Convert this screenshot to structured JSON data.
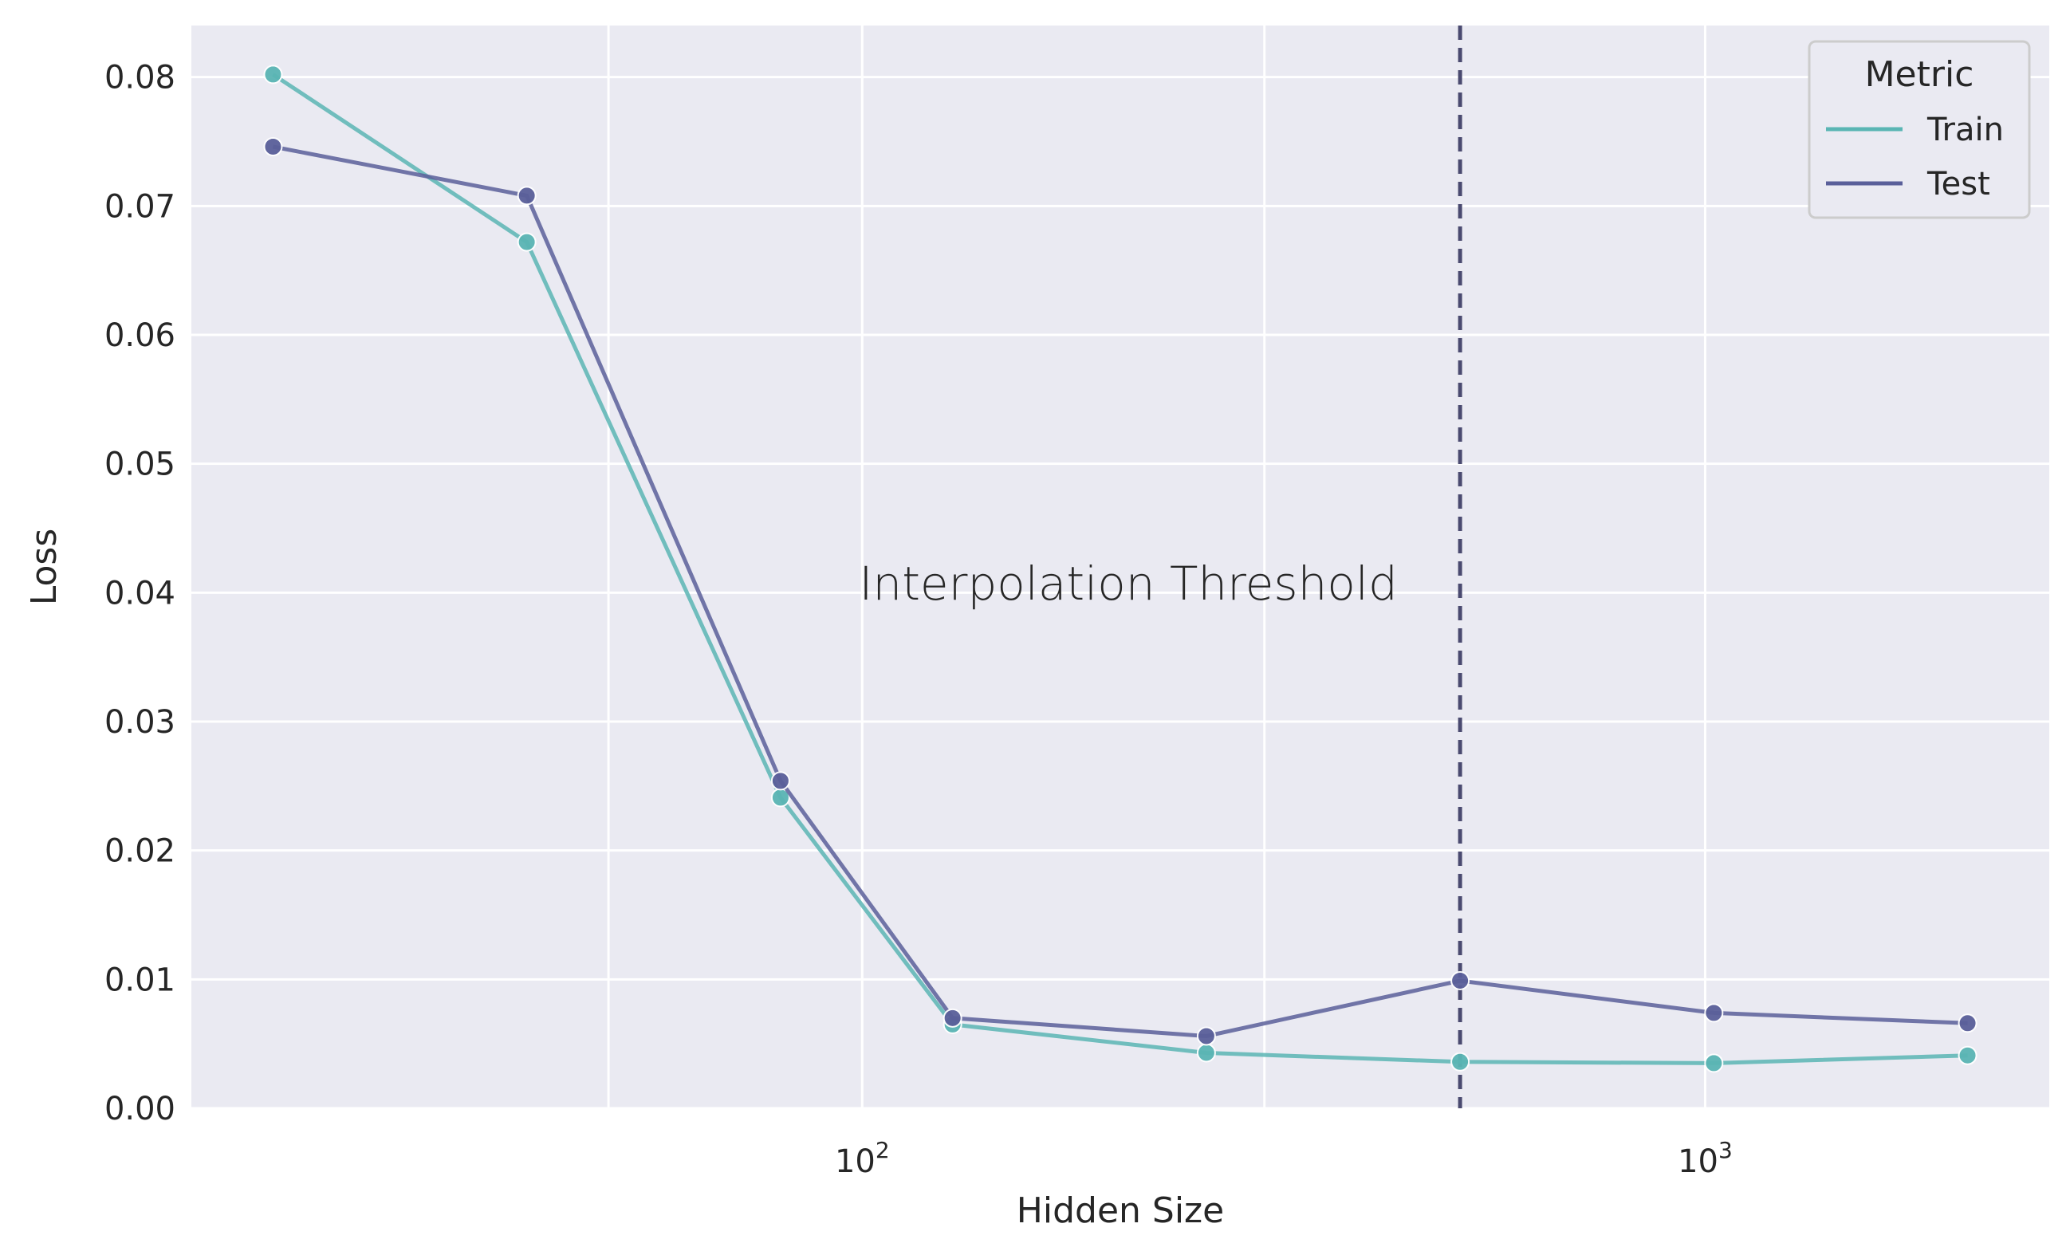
{
  "chart_data": {
    "type": "line",
    "xlabel": "Hidden Size",
    "ylabel": "Loss",
    "xscale": "log",
    "xlim": [
      16,
      2560
    ],
    "ylim": [
      0,
      0.084
    ],
    "x_ticks": [
      {
        "value": 100,
        "base": "10",
        "exp": "2"
      },
      {
        "value": 1000,
        "base": "10",
        "exp": "3"
      }
    ],
    "x_minor_grid": [
      50,
      300
    ],
    "y_ticks": [
      0,
      0.01,
      0.02,
      0.03,
      0.04,
      0.05,
      0.06,
      0.07,
      0.08
    ],
    "y_tick_labels": [
      "0.00",
      "0.01",
      "0.02",
      "0.03",
      "0.04",
      "0.05",
      "0.06",
      "0.07",
      "0.08"
    ],
    "grid": true,
    "x": [
      20,
      40,
      80,
      128,
      256,
      512,
      1024,
      2048
    ],
    "series": [
      {
        "name": "Train",
        "color": "#5ab5b4",
        "values": [
          0.0802,
          0.0672,
          0.0241,
          0.0065,
          0.0043,
          0.0036,
          0.0035,
          0.0041
        ]
      },
      {
        "name": "Test",
        "color": "#5a5f9a",
        "values": [
          0.0746,
          0.0708,
          0.0254,
          0.007,
          0.0056,
          0.0099,
          0.0074,
          0.0066
        ]
      }
    ],
    "vline": {
      "x": 512,
      "color": "#4a4a70",
      "style": "dashed"
    },
    "annotation": {
      "text": "Interpolation Threshold",
      "x": 100,
      "y": 0.041
    },
    "legend": {
      "title": "Metric",
      "position": "top-right"
    }
  }
}
